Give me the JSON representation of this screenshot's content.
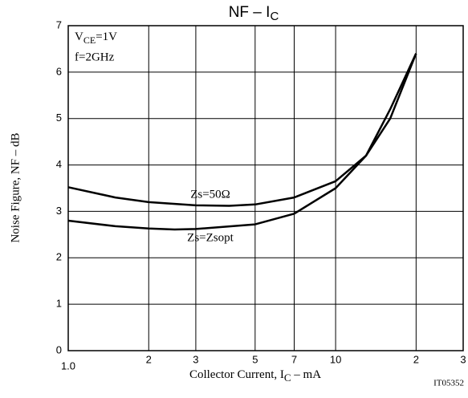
{
  "chart_data": {
    "type": "line",
    "title": "NF  –  I",
    "title_subscript": "C",
    "x_label": "Collector Current, I",
    "x_label_subscript": "C",
    "x_label_unit": "  –  mA",
    "y_label": "Noise Figure, NF  –  dB",
    "annotations": {
      "condition_v": "V",
      "condition_v_sub": "CE",
      "condition_v_value": "=1V",
      "condition_f": "f=2GHz",
      "code": "IT05352"
    },
    "x_log": true,
    "xlim": [
      1,
      30
    ],
    "xticks": [
      {
        "value": 1,
        "label": "1.0"
      },
      2,
      3,
      5,
      7,
      10,
      {
        "value": 20,
        "label": "2"
      },
      {
        "value": 30,
        "label": "3"
      }
    ],
    "ylim": [
      0,
      7
    ],
    "yticks": [
      0,
      1,
      2,
      3,
      4,
      5,
      6,
      7
    ],
    "grid": true,
    "series": [
      {
        "name": "Zs=50Ω",
        "color": "#000000",
        "x": [
          1,
          1.5,
          2,
          3,
          4,
          5,
          7,
          10,
          13,
          16,
          20
        ],
        "values": [
          3.52,
          3.3,
          3.2,
          3.13,
          3.12,
          3.15,
          3.3,
          3.65,
          4.2,
          5.0,
          6.4
        ]
      },
      {
        "name": "Zs=Zsopt",
        "color": "#000000",
        "x": [
          1,
          1.5,
          2,
          2.5,
          3,
          5,
          7,
          10,
          13,
          16,
          20
        ],
        "values": [
          2.8,
          2.68,
          2.63,
          2.61,
          2.62,
          2.72,
          2.95,
          3.5,
          4.2,
          5.2,
          6.4
        ]
      }
    ]
  }
}
